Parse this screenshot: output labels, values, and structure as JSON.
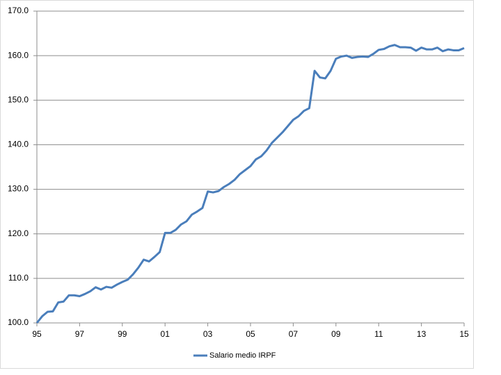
{
  "chart_data": {
    "type": "line",
    "categories": [
      "95",
      null,
      null,
      null,
      null,
      null,
      null,
      null,
      "97",
      null,
      null,
      null,
      null,
      null,
      null,
      null,
      "99",
      null,
      null,
      null,
      null,
      null,
      null,
      null,
      "01",
      null,
      null,
      null,
      null,
      null,
      null,
      null,
      "03",
      null,
      null,
      null,
      null,
      null,
      null,
      null,
      "05",
      null,
      null,
      null,
      null,
      null,
      null,
      null,
      "07",
      null,
      null,
      null,
      null,
      null,
      null,
      null,
      "09",
      null,
      null,
      null,
      null,
      null,
      null,
      null,
      "11",
      null,
      null,
      null,
      null,
      null,
      null,
      null,
      "13",
      null,
      null,
      null,
      null,
      null,
      null,
      null,
      "15"
    ],
    "series": [
      {
        "name": "Salario medio IRPF",
        "color": "#4a7ebb",
        "values": [
          100.0,
          101.5,
          102.5,
          102.6,
          104.6,
          104.8,
          106.2,
          106.2,
          106.0,
          106.5,
          107.1,
          108.0,
          107.5,
          108.1,
          107.9,
          108.6,
          109.2,
          109.7,
          110.9,
          112.4,
          114.2,
          113.8,
          114.8,
          115.9,
          120.2,
          120.2,
          120.9,
          122.1,
          122.8,
          124.3,
          125.0,
          125.8,
          129.5,
          129.3,
          129.6,
          130.5,
          131.2,
          132.1,
          133.4,
          134.3,
          135.2,
          136.7,
          137.4,
          138.7,
          140.4,
          141.6,
          142.8,
          144.2,
          145.6,
          146.4,
          147.6,
          148.2,
          156.6,
          155.1,
          154.9,
          156.6,
          159.3,
          159.8,
          160.0,
          159.5,
          159.7,
          159.8,
          159.7,
          160.4,
          161.3,
          161.5,
          162.1,
          162.4,
          161.9,
          161.9,
          161.8,
          161.1,
          161.8,
          161.4,
          161.4,
          161.8,
          161.0,
          161.4,
          161.2,
          161.2,
          161.7
        ]
      }
    ],
    "ylim": [
      100,
      170
    ],
    "yticks": [
      {
        "value": 100,
        "label": "100.0"
      },
      {
        "value": 110,
        "label": "110.0"
      },
      {
        "value": 120,
        "label": "120.0"
      },
      {
        "value": 130,
        "label": "130.0"
      },
      {
        "value": 140,
        "label": "140.0"
      },
      {
        "value": 150,
        "label": "150.0"
      },
      {
        "value": 160,
        "label": "160.0"
      },
      {
        "value": 170,
        "label": "170.0"
      }
    ],
    "grid": true,
    "legend": "bottom"
  }
}
